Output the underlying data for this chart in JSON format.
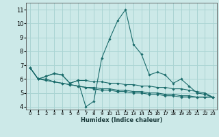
{
  "xlabel": "Humidex (Indice chaleur)",
  "ylabel": "",
  "xlim": [
    -0.5,
    23.5
  ],
  "ylim": [
    3.8,
    11.5
  ],
  "yticks": [
    4,
    5,
    6,
    7,
    8,
    9,
    10,
    11
  ],
  "xticks": [
    0,
    1,
    2,
    3,
    4,
    5,
    6,
    7,
    8,
    9,
    10,
    11,
    12,
    13,
    14,
    15,
    16,
    17,
    18,
    19,
    20,
    21,
    22,
    23
  ],
  "background_color": "#cce9e8",
  "grid_color": "#aad4d3",
  "line_color": "#1a6b6b",
  "lines": [
    [
      6.8,
      6.0,
      6.2,
      6.4,
      6.3,
      5.7,
      5.9,
      4.0,
      4.4,
      7.5,
      8.9,
      10.2,
      11.0,
      8.5,
      7.8,
      6.3,
      6.5,
      6.3,
      5.7,
      6.0,
      5.5,
      5.0,
      4.9,
      4.7
    ],
    [
      6.8,
      6.0,
      6.2,
      6.4,
      6.3,
      5.7,
      5.9,
      5.9,
      5.8,
      5.8,
      5.7,
      5.7,
      5.6,
      5.6,
      5.5,
      5.5,
      5.4,
      5.4,
      5.3,
      5.3,
      5.2,
      5.1,
      5.0,
      4.7
    ],
    [
      6.8,
      6.0,
      6.0,
      5.8,
      5.7,
      5.6,
      5.5,
      5.4,
      5.4,
      5.3,
      5.3,
      5.2,
      5.2,
      5.1,
      5.1,
      5.0,
      5.0,
      4.9,
      4.9,
      4.8,
      4.8,
      4.7,
      4.7,
      4.7
    ],
    [
      6.8,
      6.0,
      5.9,
      5.8,
      5.7,
      5.6,
      5.5,
      5.4,
      5.3,
      5.2,
      5.2,
      5.1,
      5.1,
      5.0,
      5.0,
      4.9,
      4.9,
      4.8,
      4.8,
      4.7,
      4.7,
      4.7,
      4.7,
      4.7
    ]
  ],
  "xlabel_fontsize": 6.0,
  "tick_fontsize_x": 5.0,
  "tick_fontsize_y": 6.0
}
